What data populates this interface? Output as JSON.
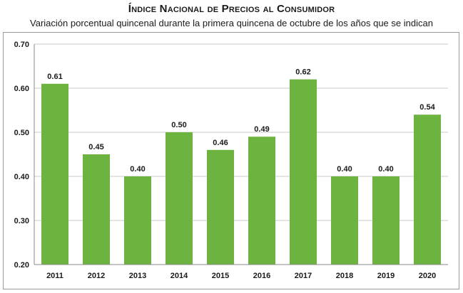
{
  "chart_data": {
    "type": "bar",
    "title": "Índice Nacional de Precios al Consumidor",
    "subtitle": "Variación porcentual quincenal durante la primera quincena de octubre de los años que se indican",
    "categories": [
      "2011",
      "2012",
      "2013",
      "2014",
      "2015",
      "2016",
      "2017",
      "2018",
      "2019",
      "2020"
    ],
    "values": [
      0.61,
      0.45,
      0.4,
      0.5,
      0.46,
      0.49,
      0.62,
      0.4,
      0.4,
      0.54
    ],
    "data_labels": [
      "0.61",
      "0.45",
      "0.40",
      "0.50",
      "0.46",
      "0.49",
      "0.62",
      "0.40",
      "0.40",
      "0.54"
    ],
    "ylim": [
      0.2,
      0.7
    ],
    "yticks": [
      "0.20",
      "0.30",
      "0.40",
      "0.50",
      "0.60",
      "0.70"
    ],
    "grid": true,
    "bar_color": "#6db33f",
    "grid_color": "#c8c8c8"
  }
}
